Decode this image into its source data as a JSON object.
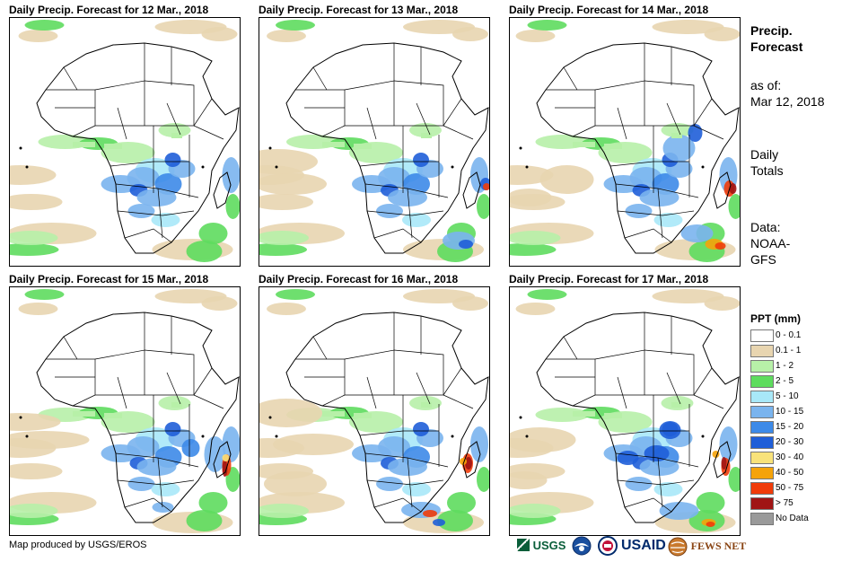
{
  "panels": [
    {
      "title": "Daily Precip. Forecast for 12 Mar., 2018"
    },
    {
      "title": "Daily Precip. Forecast for 13 Mar., 2018"
    },
    {
      "title": "Daily Precip. Forecast for 14 Mar., 2018"
    },
    {
      "title": "Daily Precip. Forecast for 15 Mar., 2018"
    },
    {
      "title": "Daily Precip. Forecast for 16 Mar., 2018"
    },
    {
      "title": "Daily Precip. Forecast for 17 Mar., 2018"
    }
  ],
  "sidebar": {
    "heading_line1": "Precip.",
    "heading_line2": "Forecast",
    "asof_line1": "as of:",
    "asof_line2": "Mar 12, 2018",
    "totals_line1": "Daily",
    "totals_line2": "Totals",
    "data_line1": "Data:",
    "data_line2": "NOAA-",
    "data_line3": "GFS"
  },
  "legend": {
    "title": "PPT (mm)",
    "items": [
      {
        "label": "0 - 0.1",
        "color": "#ffffff"
      },
      {
        "label": "0.1 - 1",
        "color": "#e8d5b0"
      },
      {
        "label": "1 - 2",
        "color": "#b7f0a8"
      },
      {
        "label": "2 - 5",
        "color": "#5edc5e"
      },
      {
        "label": "5 - 10",
        "color": "#a8e8f8"
      },
      {
        "label": "10 - 15",
        "color": "#7ab4ee"
      },
      {
        "label": "15 - 20",
        "color": "#3d8ae8"
      },
      {
        "label": "20 - 30",
        "color": "#1f5ed8"
      },
      {
        "label": "30 - 40",
        "color": "#f8e27a"
      },
      {
        "label": "40 - 50",
        "color": "#f5a30a"
      },
      {
        "label": "50 - 75",
        "color": "#f03c0a"
      },
      {
        "label": "> 75",
        "color": "#a01414"
      },
      {
        "label": "No Data",
        "color": "#9a9a9a"
      }
    ]
  },
  "footer": {
    "credit": "Map produced by USGS/EROS",
    "logos": {
      "usgs": "USGS",
      "usaid": "USAID",
      "fewsnet": "FEWS NET"
    }
  }
}
